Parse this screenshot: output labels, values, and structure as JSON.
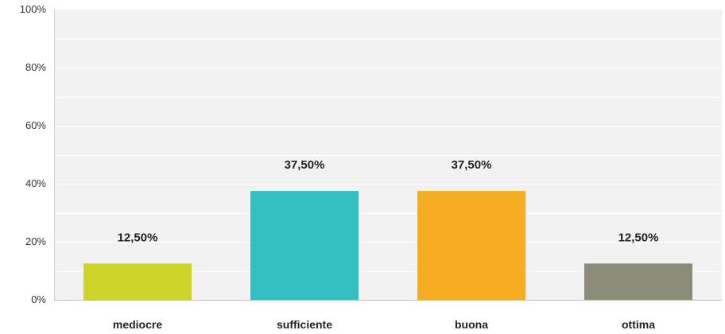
{
  "chart_data": {
    "type": "bar",
    "categories": [
      "mediocre",
      "sufficiente",
      "buona",
      "ottima"
    ],
    "values": [
      12.5,
      37.5,
      37.5,
      12.5
    ],
    "value_labels": [
      "12,50%",
      "37,50%",
      "37,50%",
      "12,50%"
    ],
    "colors": [
      "#cdd529",
      "#34bfc1",
      "#f6ad21",
      "#8a8b78"
    ],
    "y_ticks": [
      0,
      20,
      40,
      60,
      80,
      100
    ],
    "y_tick_labels": [
      "0%",
      "20%",
      "40%",
      "60%",
      "80%",
      "100%"
    ],
    "ylim": [
      0,
      100
    ],
    "grid": true,
    "plot_background": "#f2f2f2",
    "title": "",
    "xlabel": "",
    "ylabel": ""
  }
}
